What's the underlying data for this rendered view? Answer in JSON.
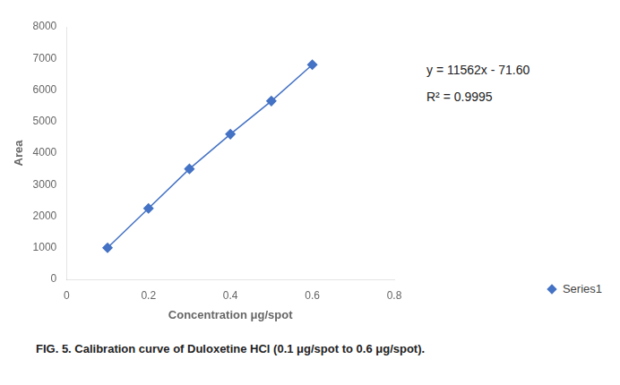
{
  "chart_data": {
    "type": "line",
    "x": [
      0.1,
      0.2,
      0.3,
      0.4,
      0.5,
      0.6
    ],
    "series": [
      {
        "name": "Series1",
        "color": "#4472C4",
        "marker": "diamond",
        "values": [
          1000,
          2250,
          3500,
          4600,
          5650,
          6800
        ]
      }
    ],
    "xlim": [
      0,
      0.8
    ],
    "xticks": [
      0,
      0.2,
      0.4,
      0.6,
      0.8
    ],
    "ylim": [
      0,
      8000
    ],
    "yticks": [
      0,
      1000,
      2000,
      3000,
      4000,
      5000,
      6000,
      7000,
      8000
    ],
    "xlabel": "Concentration μg/spot",
    "ylabel": "Area",
    "annotations": [
      "y = 11562x - 71.60",
      "R² = 0.9995"
    ],
    "caption": "FIG. 5. Calibration curve of Duloxetine HCl (0.1 μg/spot to 0.6 μg/spot).",
    "legend": "lower right",
    "grid": false
  }
}
